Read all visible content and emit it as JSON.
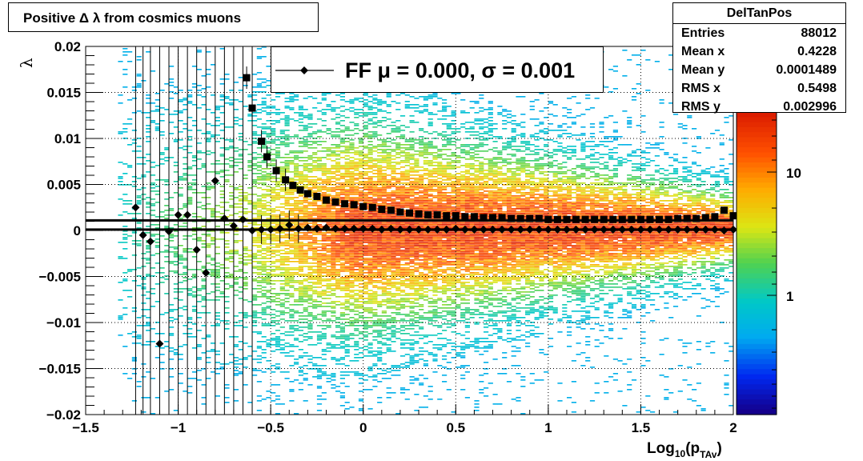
{
  "title": "Positive Δ λ from cosmics muons",
  "stats": {
    "name": "DelTanPos",
    "rows": [
      {
        "label": "Entries",
        "value": "88012"
      },
      {
        "label": "Mean x",
        "value": "0.4228"
      },
      {
        "label": "Mean y",
        "value": "0.0001489"
      },
      {
        "label": "RMS x",
        "value": "0.5498"
      },
      {
        "label": "RMS y",
        "value": "0.002996"
      }
    ]
  },
  "legend": {
    "label": "FF μ =  0.000, σ =   0.001"
  },
  "chart_data": {
    "type": "heatmap",
    "xlabel": "Log10(pTAv)",
    "ylabel": "λ",
    "xlim": [
      -1.5,
      2
    ],
    "ylim": [
      -0.02,
      0.02
    ],
    "x_ticks": [
      "−1.5",
      "−1",
      "−0.5",
      "0",
      "0.5",
      "1",
      "1.5",
      "2"
    ],
    "y_ticks": [
      "−0.02",
      "−0.015",
      "−0.01",
      "−0.005",
      "0",
      "0.005",
      "0.01",
      "0.015",
      "0.02"
    ],
    "z_ticks": [
      "1",
      "10"
    ],
    "z_scale": "log",
    "grid": true,
    "horizontal_lines": [
      0.0011,
      0.0001
    ],
    "series": [
      {
        "marker": "diamond",
        "x": [
          -1.23,
          -1.19,
          -1.15,
          -1.1,
          -1.05,
          -1.0,
          -0.95,
          -0.9,
          -0.85,
          -0.8,
          -0.75,
          -0.7,
          -0.65,
          -0.6,
          -0.55,
          -0.5,
          -0.45,
          -0.4,
          -0.35,
          -0.3,
          -0.25,
          -0.2,
          -0.15,
          -0.1,
          -0.05,
          0.0,
          0.05,
          0.1,
          0.15,
          0.2,
          0.25,
          0.3,
          0.35,
          0.4,
          0.45,
          0.5,
          0.55,
          0.6,
          0.65,
          0.7,
          0.75,
          0.8,
          0.85,
          0.9,
          0.95,
          1.0,
          1.05,
          1.1,
          1.15,
          1.2,
          1.25,
          1.3,
          1.35,
          1.4,
          1.45,
          1.5,
          1.55,
          1.6,
          1.65,
          1.7,
          1.75,
          1.8,
          1.85,
          1.9,
          1.95,
          2.0
        ],
        "y": [
          0.0025,
          -0.0005,
          -0.0012,
          -0.0123,
          -0.0001,
          0.0017,
          0.0017,
          -0.0021,
          -0.0046,
          0.0054,
          0.0013,
          0.0005,
          0.0012,
          0.0,
          0.0001,
          0.0001,
          0.0002,
          0.0006,
          0.0002,
          0.0003,
          0.0002,
          0.0003,
          0.0002,
          0.0002,
          0.0002,
          0.0002,
          0.0002,
          0.0001,
          0.0002,
          0.0001,
          0.0001,
          0.0001,
          0.0001,
          0.0001,
          0.0001,
          0.0002,
          0.0001,
          0.0001,
          0.0001,
          0.0001,
          0.0001,
          0.0001,
          0.0001,
          0.0001,
          0.0001,
          0.0001,
          0.0001,
          0.0001,
          0.0001,
          0.0001,
          0.0001,
          0.0001,
          0.0001,
          0.0001,
          0.0001,
          0.0001,
          0.0001,
          0.0001,
          0.0001,
          0.0001,
          0.0001,
          0.0001,
          0.0001,
          0.0001,
          0.0,
          0.0001
        ]
      },
      {
        "marker": "square",
        "x": [
          -0.63,
          -0.6,
          -0.55,
          -0.52,
          -0.47,
          -0.42,
          -0.38,
          -0.34,
          -0.3,
          -0.25,
          -0.2,
          -0.15,
          -0.1,
          -0.05,
          0.0,
          0.05,
          0.1,
          0.15,
          0.2,
          0.25,
          0.3,
          0.35,
          0.4,
          0.45,
          0.5,
          0.55,
          0.6,
          0.65,
          0.7,
          0.75,
          0.8,
          0.85,
          0.9,
          0.95,
          1.0,
          1.05,
          1.1,
          1.15,
          1.2,
          1.25,
          1.3,
          1.35,
          1.4,
          1.45,
          1.5,
          1.55,
          1.6,
          1.65,
          1.7,
          1.75,
          1.8,
          1.85,
          1.9,
          1.95,
          2.0
        ],
        "y": [
          0.0166,
          0.0133,
          0.0097,
          0.008,
          0.0065,
          0.0055,
          0.0049,
          0.0044,
          0.004,
          0.0037,
          0.0033,
          0.0031,
          0.0029,
          0.0028,
          0.0026,
          0.0025,
          0.0023,
          0.0022,
          0.002,
          0.0019,
          0.0018,
          0.0017,
          0.0017,
          0.0016,
          0.0016,
          0.0015,
          0.0015,
          0.0014,
          0.0014,
          0.0014,
          0.0013,
          0.0013,
          0.0013,
          0.0013,
          0.0012,
          0.0012,
          0.0012,
          0.0012,
          0.0012,
          0.0012,
          0.0012,
          0.0012,
          0.0012,
          0.0012,
          0.0012,
          0.0012,
          0.0012,
          0.0012,
          0.0013,
          0.0013,
          0.0013,
          0.0014,
          0.0015,
          0.0022,
          0.0016
        ]
      }
    ]
  }
}
